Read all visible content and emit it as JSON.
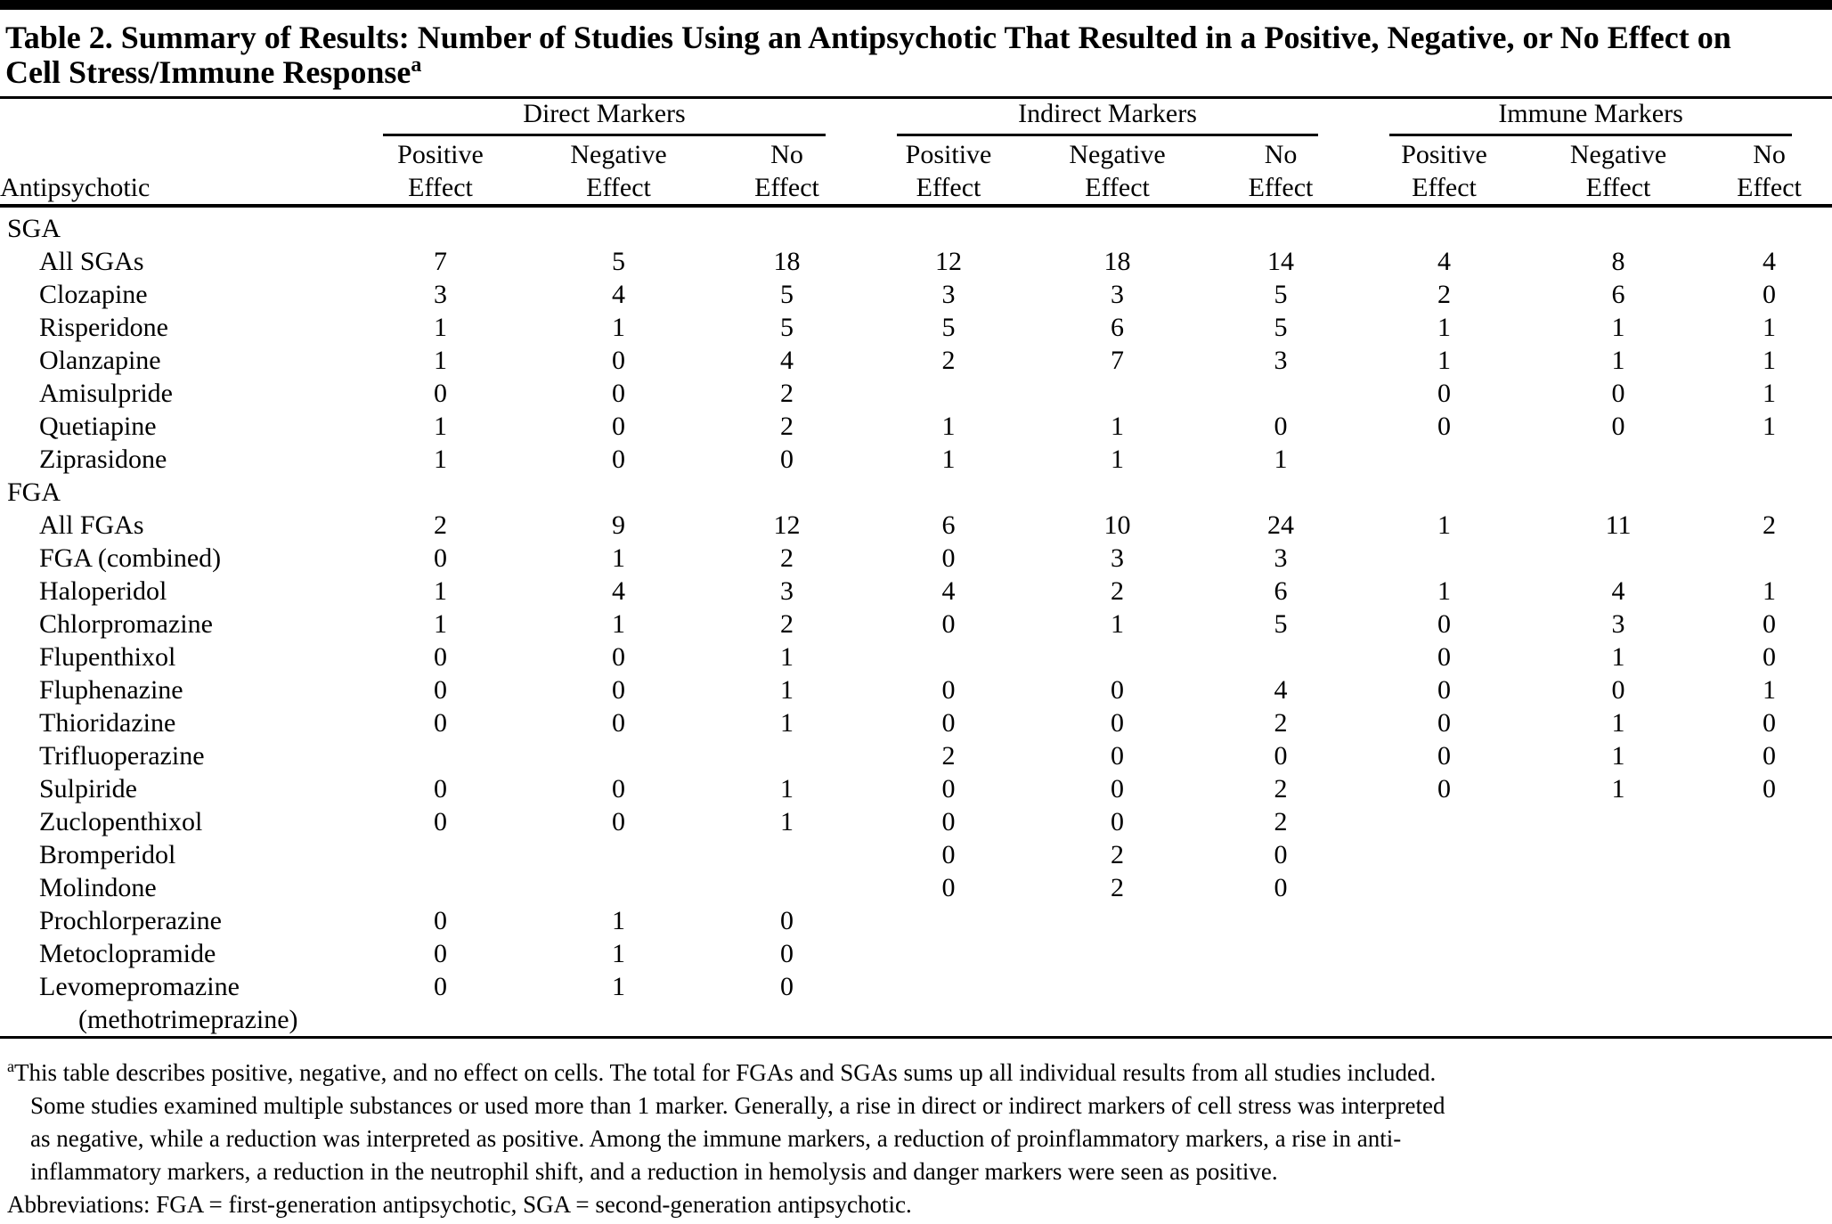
{
  "title": {
    "line1": "Table 2. Summary of Results: Number of Studies Using an Antipsychotic That Resulted in a Positive, Negative, or No Effect on",
    "line2": "Cell Stress/Immune Response",
    "footnote_marker": "a"
  },
  "table": {
    "row_header": "Antipsychotic",
    "groups": [
      {
        "label": "Direct Markers"
      },
      {
        "label": "Indirect Markers"
      },
      {
        "label": "Immune Markers"
      }
    ],
    "effect_headers": [
      "Positive\nEffect",
      "Negative\nEffect",
      "No\nEffect"
    ],
    "rows": [
      {
        "label": "SGA",
        "indent": 0,
        "cells": [
          "",
          "",
          "",
          "",
          "",
          "",
          "",
          "",
          ""
        ]
      },
      {
        "label": "All SGAs",
        "indent": 1,
        "cells": [
          "7",
          "5",
          "18",
          "12",
          "18",
          "14",
          "4",
          "8",
          "4"
        ]
      },
      {
        "label": "Clozapine",
        "indent": 1,
        "cells": [
          "3",
          "4",
          "5",
          "3",
          "3",
          "5",
          "2",
          "6",
          "0"
        ]
      },
      {
        "label": "Risperidone",
        "indent": 1,
        "cells": [
          "1",
          "1",
          "5",
          "5",
          "6",
          "5",
          "1",
          "1",
          "1"
        ]
      },
      {
        "label": "Olanzapine",
        "indent": 1,
        "cells": [
          "1",
          "0",
          "4",
          "2",
          "7",
          "3",
          "1",
          "1",
          "1"
        ]
      },
      {
        "label": "Amisulpride",
        "indent": 1,
        "cells": [
          "0",
          "0",
          "2",
          "",
          "",
          "",
          "0",
          "0",
          "1"
        ]
      },
      {
        "label": "Quetiapine",
        "indent": 1,
        "cells": [
          "1",
          "0",
          "2",
          "1",
          "1",
          "0",
          "0",
          "0",
          "1"
        ]
      },
      {
        "label": "Ziprasidone",
        "indent": 1,
        "cells": [
          "1",
          "0",
          "0",
          "1",
          "1",
          "1",
          "",
          "",
          ""
        ]
      },
      {
        "label": "FGA",
        "indent": 0,
        "cells": [
          "",
          "",
          "",
          "",
          "",
          "",
          "",
          "",
          ""
        ]
      },
      {
        "label": "All FGAs",
        "indent": 1,
        "cells": [
          "2",
          "9",
          "12",
          "6",
          "10",
          "24",
          "1",
          "11",
          "2"
        ]
      },
      {
        "label": "FGA (combined)",
        "indent": 1,
        "cells": [
          "0",
          "1",
          "2",
          "0",
          "3",
          "3",
          "",
          "",
          ""
        ]
      },
      {
        "label": "Haloperidol",
        "indent": 1,
        "cells": [
          "1",
          "4",
          "3",
          "4",
          "2",
          "6",
          "1",
          "4",
          "1"
        ]
      },
      {
        "label": "Chlorpromazine",
        "indent": 1,
        "cells": [
          "1",
          "1",
          "2",
          "0",
          "1",
          "5",
          "0",
          "3",
          "0"
        ]
      },
      {
        "label": "Flupenthixol",
        "indent": 1,
        "cells": [
          "0",
          "0",
          "1",
          "",
          "",
          "",
          "0",
          "1",
          "0"
        ]
      },
      {
        "label": "Fluphenazine",
        "indent": 1,
        "cells": [
          "0",
          "0",
          "1",
          "0",
          "0",
          "4",
          "0",
          "0",
          "1"
        ]
      },
      {
        "label": "Thioridazine",
        "indent": 1,
        "cells": [
          "0",
          "0",
          "1",
          "0",
          "0",
          "2",
          "0",
          "1",
          "0"
        ]
      },
      {
        "label": "Trifluoperazine",
        "indent": 1,
        "cells": [
          "",
          "",
          "",
          "2",
          "0",
          "0",
          "0",
          "1",
          "0"
        ]
      },
      {
        "label": "Sulpiride",
        "indent": 1,
        "cells": [
          "0",
          "0",
          "1",
          "0",
          "0",
          "2",
          "0",
          "1",
          "0"
        ]
      },
      {
        "label": "Zuclopenthixol",
        "indent": 1,
        "cells": [
          "0",
          "0",
          "1",
          "0",
          "0",
          "2",
          "",
          "",
          ""
        ]
      },
      {
        "label": "Bromperidol",
        "indent": 1,
        "cells": [
          "",
          "",
          "",
          "0",
          "2",
          "0",
          "",
          "",
          ""
        ]
      },
      {
        "label": "Molindone",
        "indent": 1,
        "cells": [
          "",
          "",
          "",
          "0",
          "2",
          "0",
          "",
          "",
          ""
        ]
      },
      {
        "label": "Prochlorperazine",
        "indent": 1,
        "cells": [
          "0",
          "1",
          "0",
          "",
          "",
          "",
          "",
          "",
          ""
        ]
      },
      {
        "label": "Metoclopramide",
        "indent": 1,
        "cells": [
          "0",
          "1",
          "0",
          "",
          "",
          "",
          "",
          "",
          ""
        ]
      },
      {
        "label": "Levomepromazine",
        "label2": "(methotrimeprazine)",
        "indent": 1,
        "cells": [
          "0",
          "1",
          "0",
          "",
          "",
          "",
          "",
          "",
          ""
        ]
      }
    ]
  },
  "footnotes": {
    "marker": "a",
    "note_lines": [
      "This table describes positive, negative, and no effect on cells. The total for FGAs and SGAs sums up all individual results from all studies included.",
      "Some studies examined multiple substances or used more than 1 marker. Generally, a rise in direct or indirect markers of cell stress was interpreted",
      "as negative, while a reduction was interpreted as positive. Among the immune markers, a reduction of proinflammatory markers, a rise in anti-",
      "inflammatory markers, a reduction in the neutrophil shift, and a reduction in hemolysis and danger markers were seen as positive."
    ],
    "abbreviations": "Abbreviations: FGA = first-generation antipsychotic, SGA = second-generation antipsychotic."
  },
  "colors": {
    "text": "#000000",
    "rule": "#000000",
    "background": "#ffffff"
  }
}
